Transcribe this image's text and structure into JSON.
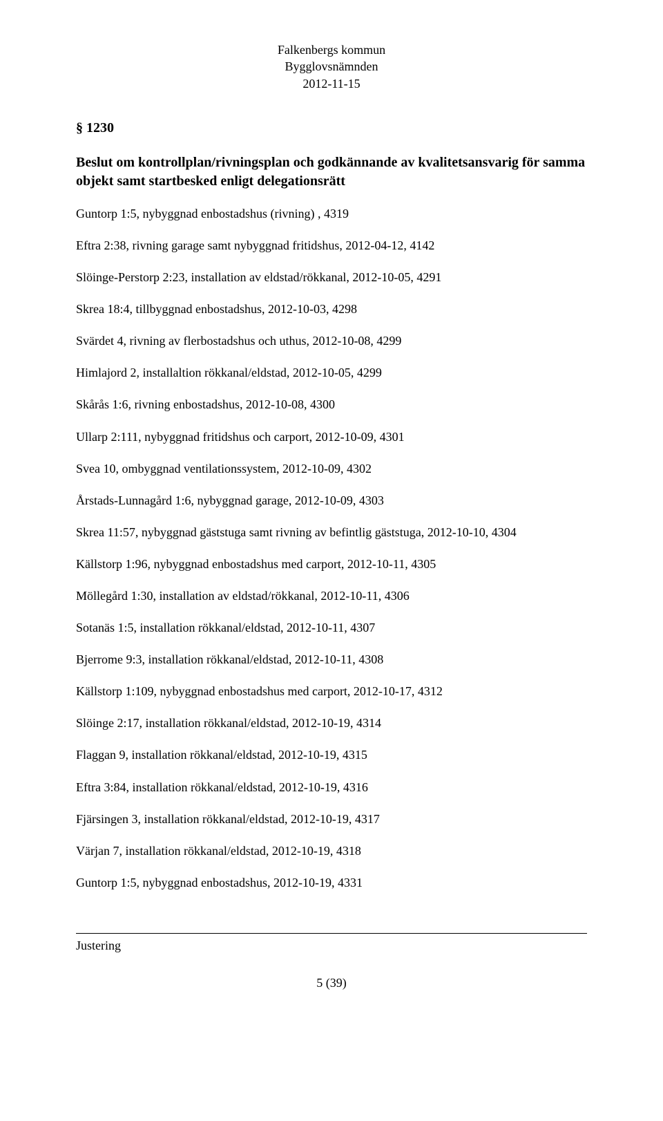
{
  "header": {
    "line1": "Falkenbergs kommun",
    "line2": "Bygglovsnämnden",
    "line3": "2012-11-15"
  },
  "section": {
    "number": "§ 1230",
    "title": "Beslut om kontrollplan/rivningsplan och godkännande av kvalitetsansvarig för samma objekt samt startbesked enligt delegationsrätt"
  },
  "entries": [
    "Guntorp 1:5, nybyggnad enbostadshus (rivning) , 4319",
    "Eftra 2:38, rivning garage samt nybyggnad fritidshus, 2012-04-12, 4142",
    "Slöinge-Perstorp 2:23, installation av eldstad/rökkanal, 2012-10-05, 4291",
    "Skrea 18:4, tillbyggnad enbostadshus, 2012-10-03, 4298",
    "Svärdet 4, rivning av flerbostadshus och uthus, 2012-10-08, 4299",
    "Himlajord 2, installaltion rökkanal/eldstad, 2012-10-05, 4299",
    "Skårås 1:6, rivning enbostadshus, 2012-10-08, 4300",
    "Ullarp 2:111, nybyggnad fritidshus och carport, 2012-10-09, 4301",
    "Svea 10, ombyggnad ventilationssystem, 2012-10-09, 4302",
    "Årstads-Lunnagård 1:6, nybyggnad garage, 2012-10-09, 4303",
    "Skrea 11:57, nybyggnad gäststuga samt rivning av befintlig gäststuga, 2012-10-10, 4304",
    "Källstorp 1:96, nybyggnad enbostadshus med carport, 2012-10-11, 4305",
    "Möllegård 1:30, installation av eldstad/rökkanal, 2012-10-11, 4306",
    "Sotanäs 1:5, installation rökkanal/eldstad, 2012-10-11, 4307",
    "Bjerrome 9:3, installation rökkanal/eldstad, 2012-10-11, 4308",
    "Källstorp 1:109, nybyggnad enbostadshus med carport, 2012-10-17, 4312",
    "Slöinge 2:17, installation rökkanal/eldstad, 2012-10-19, 4314",
    "Flaggan 9, installation rökkanal/eldstad, 2012-10-19, 4315",
    "Eftra 3:84, installation rökkanal/eldstad, 2012-10-19, 4316",
    "Fjärsingen 3, installation rökkanal/eldstad, 2012-10-19, 4317",
    "Värjan 7, installation rökkanal/eldstad, 2012-10-19, 4318",
    "Guntorp 1:5, nybyggnad enbostadshus, 2012-10-19, 4331"
  ],
  "footer": {
    "justering": "Justering",
    "page": "5 (39)"
  }
}
